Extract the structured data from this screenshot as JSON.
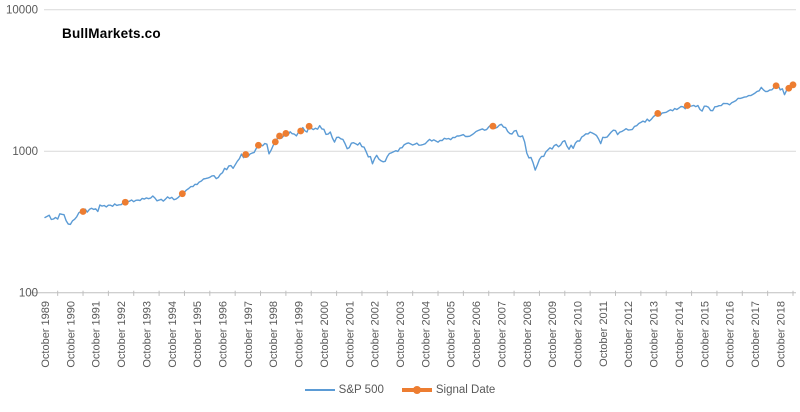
{
  "branding": {
    "title": "BullMarkets.co"
  },
  "legend": {
    "items": [
      {
        "label": "S&P 500",
        "color": "#5B9BD5"
      },
      {
        "label": "Signal Date",
        "color": "#ED7D31"
      }
    ]
  },
  "colors": {
    "sp500_line": "#5B9BD5",
    "signal_marker": "#ED7D31",
    "gridline": "#D9D9D9",
    "axis_line": "#BFBFBF",
    "axis_text": "#595959",
    "title_text": "#000000",
    "background": "#FFFFFF"
  },
  "chart_data": {
    "type": "line",
    "title": "BullMarkets.co",
    "y_scale": "log",
    "ylim": [
      100,
      10000
    ],
    "y_ticks": [
      100,
      1000,
      10000
    ],
    "grid_y_values": [
      1000,
      10000
    ],
    "x_start": "1989-10",
    "x_interval": "monthly",
    "x_tick_labels": [
      "October 1989",
      "October 1990",
      "October 1991",
      "October 1992",
      "October 1993",
      "October 1994",
      "October 1995",
      "October 1996",
      "October 1997",
      "October 1998",
      "October 1999",
      "October 2000",
      "October 2001",
      "October 2002",
      "October 2003",
      "October 2004",
      "October 2005",
      "October 2006",
      "October 2007",
      "October 2008",
      "October 2009",
      "October 2010",
      "October 2011",
      "October 2012",
      "October 2013",
      "October 2014",
      "October 2015",
      "October 2016",
      "October 2017",
      "October 2018"
    ],
    "series": [
      {
        "name": "S&P 500",
        "type": "line",
        "color": "#5B9BD5",
        "start": "1989-10",
        "values": [
          340,
          346,
          353,
          329,
          332,
          340,
          331,
          361,
          358,
          356,
          323,
          306,
          304,
          322,
          330,
          344,
          367,
          375,
          375,
          390,
          371,
          388,
          395,
          388,
          392,
          375,
          417,
          409,
          413,
          404,
          415,
          415,
          408,
          424,
          414,
          418,
          419,
          431,
          436,
          439,
          443,
          452,
          440,
          450,
          451,
          448,
          464,
          459,
          468,
          462,
          466,
          482,
          467,
          446,
          451,
          457,
          444,
          458,
          475,
          463,
          472,
          454,
          459,
          470,
          487,
          501,
          515,
          533,
          545,
          562,
          562,
          584,
          582,
          605,
          616,
          636,
          640,
          646,
          654,
          669,
          671,
          640,
          652,
          687,
          705,
          757,
          741,
          786,
          791,
          757,
          801,
          848,
          885,
          954,
          899,
          947,
          915,
          955,
          970,
          980,
          1049,
          1102,
          1112,
          1091,
          1134,
          1121,
          957,
          1017,
          1099,
          1164,
          1229,
          1280,
          1238,
          1286,
          1335,
          1302,
          1373,
          1329,
          1320,
          1283,
          1363,
          1389,
          1469,
          1394,
          1366,
          1499,
          1452,
          1421,
          1455,
          1431,
          1518,
          1437,
          1429,
          1315,
          1320,
          1366,
          1240,
          1160,
          1249,
          1256,
          1224,
          1211,
          1134,
          1041,
          1060,
          1139,
          1148,
          1130,
          1107,
          1147,
          1077,
          1067,
          990,
          911,
          916,
          815,
          886,
          936,
          880,
          856,
          841,
          848,
          917,
          964,
          975,
          990,
          1008,
          996,
          1051,
          1058,
          1112,
          1131,
          1145,
          1126,
          1107,
          1121,
          1141,
          1102,
          1104,
          1115,
          1130,
          1174,
          1212,
          1181,
          1204,
          1181,
          1157,
          1192,
          1191,
          1234,
          1220,
          1229,
          1207,
          1249,
          1248,
          1280,
          1281,
          1295,
          1311,
          1270,
          1270,
          1277,
          1304,
          1336,
          1378,
          1401,
          1418,
          1438,
          1407,
          1421,
          1482,
          1531,
          1503,
          1455,
          1474,
          1527,
          1549,
          1481,
          1468,
          1379,
          1331,
          1323,
          1386,
          1400,
          1280,
          1267,
          1283,
          1166,
          969,
          896,
          903,
          826,
          735,
          798,
          873,
          919,
          919,
          987,
          1021,
          1057,
          1036,
          1096,
          1115,
          1074,
          1104,
          1169,
          1187,
          1089,
          1031,
          1102,
          1049,
          1141,
          1183,
          1181,
          1258,
          1286,
          1327,
          1326,
          1364,
          1345,
          1321,
          1292,
          1219,
          1131,
          1253,
          1247,
          1258,
          1312,
          1366,
          1408,
          1398,
          1310,
          1362,
          1379,
          1407,
          1441,
          1412,
          1416,
          1426,
          1498,
          1515,
          1569,
          1598,
          1631,
          1606,
          1686,
          1633,
          1682,
          1757,
          1806,
          1848,
          1783,
          1859,
          1872,
          1884,
          1924,
          1960,
          1931,
          2003,
          1972,
          2018,
          2068,
          2059,
          1995,
          2105,
          2068,
          2086,
          2107,
          2063,
          2104,
          1972,
          1920,
          2079,
          2080,
          2044,
          1940,
          1932,
          2060,
          2065,
          2097,
          2099,
          2174,
          2171,
          2168,
          2126,
          2199,
          2239,
          2279,
          2364,
          2363,
          2384,
          2412,
          2423,
          2470,
          2472,
          2519,
          2575,
          2648,
          2674,
          2824,
          2714,
          2641,
          2648,
          2705,
          2718,
          2816,
          2902,
          2914,
          2712,
          2760,
          2507,
          2704,
          2784,
          2834,
          2946
        ]
      },
      {
        "name": "Signal Date",
        "type": "scatter",
        "color": "#ED7D31",
        "points": [
          {
            "date": "1991-04",
            "value": 375
          },
          {
            "date": "1992-12",
            "value": 436
          },
          {
            "date": "1995-03",
            "value": 501
          },
          {
            "date": "1997-09",
            "value": 947
          },
          {
            "date": "1998-03",
            "value": 1102
          },
          {
            "date": "1998-11",
            "value": 1164
          },
          {
            "date": "1999-01",
            "value": 1280
          },
          {
            "date": "1999-04",
            "value": 1335
          },
          {
            "date": "1999-11",
            "value": 1389
          },
          {
            "date": "2000-03",
            "value": 1499
          },
          {
            "date": "2007-06",
            "value": 1503
          },
          {
            "date": "2013-12",
            "value": 1848
          },
          {
            "date": "2015-02",
            "value": 2105
          },
          {
            "date": "2018-08",
            "value": 2902
          },
          {
            "date": "2019-02",
            "value": 2784
          },
          {
            "date": "2019-04",
            "value": 2946
          }
        ]
      }
    ],
    "legend_position": "bottom",
    "grid": true
  }
}
